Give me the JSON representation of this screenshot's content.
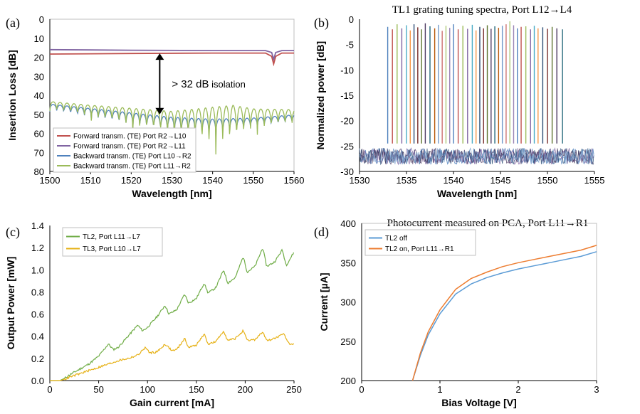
{
  "chart_data": [
    {
      "id": "a",
      "panel_label": "(a)",
      "type": "line",
      "title": "",
      "xlabel": "Wavelength [nm]",
      "ylabel": "Insertion Loss [dB]",
      "xlim": [
        1500,
        1560
      ],
      "ylim": [
        0,
        80
      ],
      "y_inverted": true,
      "xticks": [
        "1500",
        "1510",
        "1520",
        "1530",
        "1540",
        "1550",
        "1560"
      ],
      "yticks": [
        "0",
        "10",
        "20",
        "30",
        "40",
        "50",
        "60",
        "70",
        "80"
      ],
      "legend_position": "bottom-left",
      "annotation": {
        "text": "> 32 dB",
        "text_small": " isolation",
        "arrow_x": 1527,
        "arrow_y": [
          18,
          50
        ]
      },
      "series": [
        {
          "name": "Forward transm. (TE) Port R2→L10",
          "color": "#c0504d",
          "x": [
            1500,
            1520,
            1540,
            1553,
            1554.5,
            1555,
            1555.5,
            1557,
            1560
          ],
          "y": [
            18.3,
            18.0,
            17.8,
            17.8,
            19.5,
            23.5,
            19.5,
            17.8,
            17.8
          ]
        },
        {
          "name": "Forward transm. (TE) Port R2→L11",
          "color": "#8064a2",
          "x": [
            1500,
            1520,
            1540,
            1553,
            1554.5,
            1555,
            1555.5,
            1557,
            1560
          ],
          "y": [
            16.0,
            16.3,
            16.5,
            16.5,
            17.5,
            21.0,
            17.5,
            16.5,
            16.5
          ]
        },
        {
          "name": "Backward transm. (TE) Port L10→R2",
          "color": "#4f81bd",
          "x": [
            1500,
            1510,
            1520,
            1530,
            1540,
            1545,
            1550,
            1560
          ],
          "y": [
            46,
            49,
            52,
            55,
            56,
            55,
            54,
            52
          ],
          "ripple_period": 1.7,
          "ripple_depth": [
            4,
            6,
            8,
            10,
            10,
            8,
            6,
            5
          ]
        },
        {
          "name": "Backward transm. (TE) Port L11→R2",
          "color": "#9bbb59",
          "x": [
            1500,
            1510,
            1520,
            1530,
            1540,
            1545,
            1550,
            1560
          ],
          "y": [
            45,
            48,
            51,
            54,
            55,
            54,
            52,
            51
          ],
          "ripple_period": 1.7,
          "ripple_depth": [
            5,
            8,
            12,
            16,
            25,
            25,
            14,
            10
          ]
        }
      ]
    },
    {
      "id": "b",
      "panel_label": "(b)",
      "type": "line",
      "title": "TL1 grating tuning spectra, Port L12→L4",
      "xlabel": "Wavelength [nm]",
      "ylabel": "Normalized power [dB]",
      "xlim": [
        1530,
        1555
      ],
      "ylim": [
        -30,
        0
      ],
      "xticks": [
        "1530",
        "1535",
        "1540",
        "1545",
        "1550",
        "1555"
      ],
      "yticks": [
        "0",
        "-5",
        "-10",
        "-15",
        "-20",
        "-25",
        "-30"
      ],
      "noise_floor_db": -27,
      "peak_colors": [
        "#4f81bd",
        "#c0504d",
        "#9bbb59",
        "#8064a2",
        "#4bacc6",
        "#f79646",
        "#2c4d75",
        "#772c2a",
        "#5f7530",
        "#4d3b62",
        "#276a7c",
        "#b65708",
        "#729aca",
        "#cd7371",
        "#afc97a",
        "#9983b5"
      ],
      "peaks": [
        {
          "x": 1533.0,
          "y": -1.5
        },
        {
          "x": 1533.5,
          "y": -2.0
        },
        {
          "x": 1534.0,
          "y": -1.0
        },
        {
          "x": 1534.5,
          "y": -1.8
        },
        {
          "x": 1535.0,
          "y": -1.2
        },
        {
          "x": 1535.4,
          "y": -2.2
        },
        {
          "x": 1535.8,
          "y": -1.0
        },
        {
          "x": 1536.2,
          "y": -1.6
        },
        {
          "x": 1536.6,
          "y": -2.0
        },
        {
          "x": 1537.0,
          "y": -0.8
        },
        {
          "x": 1537.5,
          "y": -1.4
        },
        {
          "x": 1538.0,
          "y": -1.8
        },
        {
          "x": 1538.4,
          "y": -1.1
        },
        {
          "x": 1538.8,
          "y": -2.3
        },
        {
          "x": 1539.2,
          "y": -1.3
        },
        {
          "x": 1539.6,
          "y": -1.7
        },
        {
          "x": 1540.0,
          "y": -1.0
        },
        {
          "x": 1540.5,
          "y": -2.0
        },
        {
          "x": 1541.0,
          "y": -1.3
        },
        {
          "x": 1541.5,
          "y": -1.9
        },
        {
          "x": 1542.0,
          "y": -1.1
        },
        {
          "x": 1542.4,
          "y": -2.2
        },
        {
          "x": 1542.8,
          "y": -1.5
        },
        {
          "x": 1543.2,
          "y": -1.8
        },
        {
          "x": 1543.6,
          "y": -1.2
        },
        {
          "x": 1544.0,
          "y": -1.9
        },
        {
          "x": 1544.4,
          "y": -1.4
        },
        {
          "x": 1544.8,
          "y": -1.7
        },
        {
          "x": 1545.2,
          "y": -1.3
        },
        {
          "x": 1545.6,
          "y": -1.0
        },
        {
          "x": 1546.0,
          "y": -0.4
        },
        {
          "x": 1546.4,
          "y": -1.2
        },
        {
          "x": 1546.8,
          "y": -1.8
        },
        {
          "x": 1547.2,
          "y": -1.5
        },
        {
          "x": 1547.7,
          "y": -1.4
        },
        {
          "x": 1548.2,
          "y": -2.0
        },
        {
          "x": 1548.6,
          "y": -1.3
        },
        {
          "x": 1549.0,
          "y": -1.8
        },
        {
          "x": 1549.5,
          "y": -1.6
        },
        {
          "x": 1550.0,
          "y": -1.9
        },
        {
          "x": 1550.5,
          "y": -1.5
        },
        {
          "x": 1551.0,
          "y": -1.8
        },
        {
          "x": 1551.6,
          "y": -2.0
        }
      ]
    },
    {
      "id": "c",
      "panel_label": "(c)",
      "type": "line",
      "title": "",
      "xlabel": "Gain current [mA]",
      "ylabel": "Output Power [mW]",
      "xlim": [
        0,
        250
      ],
      "ylim": [
        0,
        1.4
      ],
      "xticks": [
        "0",
        "50",
        "100",
        "150",
        "200",
        "250"
      ],
      "yticks": [
        "0.0",
        "0.2",
        "0.4",
        "0.6",
        "0.8",
        "1.0",
        "1.2",
        "1.4"
      ],
      "legend_position": "top-left",
      "series": [
        {
          "name": "TL2, Port L11→L7",
          "color": "#70ad47",
          "x": [
            0,
            10,
            15,
            20,
            30,
            40,
            50,
            60,
            65,
            70,
            80,
            90,
            95,
            100,
            110,
            118,
            122,
            130,
            138,
            142,
            150,
            158,
            162,
            170,
            178,
            182,
            190,
            198,
            202,
            210,
            218,
            222,
            230,
            238,
            242,
            250
          ],
          "y": [
            0,
            0,
            0.02,
            0.05,
            0.1,
            0.15,
            0.22,
            0.33,
            0.28,
            0.3,
            0.4,
            0.5,
            0.45,
            0.48,
            0.58,
            0.68,
            0.6,
            0.64,
            0.78,
            0.7,
            0.74,
            0.88,
            0.79,
            0.84,
            1.0,
            0.88,
            0.93,
            1.12,
            0.98,
            1.03,
            1.2,
            1.03,
            1.07,
            1.18,
            1.04,
            1.16
          ]
        },
        {
          "name": "TL3, Port L10→L7",
          "color": "#e6b116",
          "x": [
            0,
            10,
            15,
            20,
            30,
            40,
            50,
            60,
            70,
            80,
            90,
            98,
            102,
            110,
            118,
            125,
            130,
            138,
            142,
            150,
            158,
            162,
            170,
            178,
            182,
            190,
            198,
            202,
            210,
            218,
            222,
            230,
            240,
            245,
            250
          ],
          "y": [
            0,
            0,
            0.01,
            0.03,
            0.06,
            0.09,
            0.12,
            0.15,
            0.18,
            0.2,
            0.23,
            0.3,
            0.25,
            0.26,
            0.33,
            0.27,
            0.28,
            0.38,
            0.3,
            0.32,
            0.42,
            0.33,
            0.35,
            0.45,
            0.36,
            0.38,
            0.45,
            0.36,
            0.37,
            0.44,
            0.36,
            0.38,
            0.42,
            0.33,
            0.33
          ]
        }
      ]
    },
    {
      "id": "d",
      "panel_label": "(d)",
      "type": "line",
      "title": "Photocurrent measured on PCA, Port L11→R1",
      "xlabel": "Bias Voltage [V]",
      "ylabel": "Current [µA]",
      "xlim": [
        0,
        3
      ],
      "ylim": [
        200,
        400
      ],
      "xticks": [
        "0",
        "1",
        "2",
        "3"
      ],
      "yticks": [
        "200",
        "250",
        "300",
        "350",
        "400"
      ],
      "legend_position": "top-left",
      "series": [
        {
          "name": "TL2 off",
          "color": "#5b9bd5",
          "x": [
            0.65,
            0.75,
            0.85,
            1.0,
            1.2,
            1.4,
            1.6,
            1.8,
            2.0,
            2.2,
            2.4,
            2.6,
            2.8,
            3.0
          ],
          "y": [
            200,
            232,
            258,
            285,
            310,
            323,
            331,
            337,
            342,
            346,
            350,
            354,
            358,
            364
          ]
        },
        {
          "name": "TL2 on, Port L11→R1",
          "color": "#ed7d31",
          "x": [
            0.65,
            0.75,
            0.85,
            1.0,
            1.2,
            1.4,
            1.6,
            1.8,
            2.0,
            2.2,
            2.4,
            2.6,
            2.8,
            3.0
          ],
          "y": [
            200,
            235,
            262,
            290,
            316,
            330,
            338,
            345,
            350,
            354,
            358,
            362,
            366,
            372
          ]
        }
      ]
    }
  ]
}
